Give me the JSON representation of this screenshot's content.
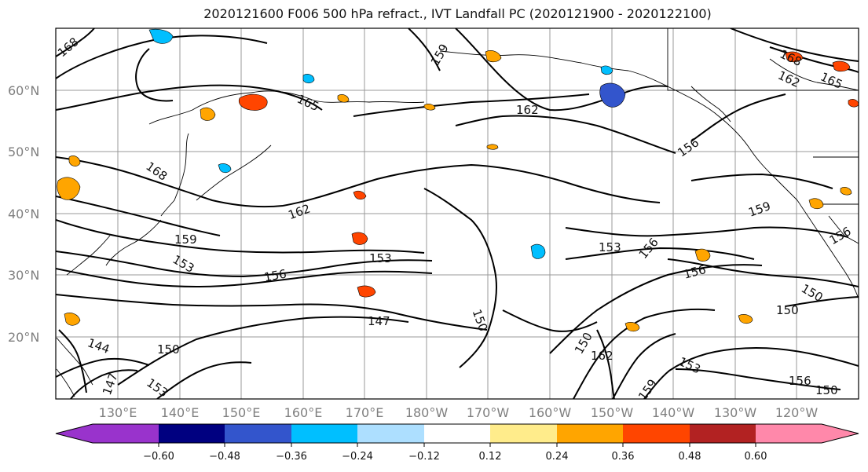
{
  "title": "2020121600 F006 500 hPa refract., IVT Landfall PC (2020121900 - 2020122100)",
  "lat_labels": [
    "60°N",
    "50°N",
    "40°N",
    "30°N",
    "20°N"
  ],
  "lon_labels": [
    "130°E",
    "140°E",
    "150°E",
    "160°E",
    "170°E",
    "180°W",
    "170°W",
    "160°W",
    "150°W",
    "140°W",
    "130°W",
    "120°W"
  ],
  "contour_labels": [
    "168",
    "159",
    "162",
    "165",
    "162",
    "165",
    "168",
    "156",
    "168",
    "162",
    "159",
    "159",
    "153",
    "153",
    "156",
    "153",
    "156",
    "156",
    "150",
    "147",
    "150",
    "150",
    "162",
    "153",
    "159",
    "156",
    "150",
    "150",
    "156",
    "150",
    "144",
    "147",
    "153"
  ],
  "colorbar": {
    "ticks": [
      "−0.60",
      "−0.48",
      "−0.36",
      "−0.24",
      "−0.12",
      "0.12",
      "0.24",
      "0.36",
      "0.48",
      "0.60"
    ],
    "colors": [
      "#9933cc",
      "#000080",
      "#3355cc",
      "#00bfff",
      "#addfff",
      "#ffffff",
      "#ffec8b",
      "#ffa500",
      "#ff4500",
      "#b22222",
      "#ff88aa"
    ]
  },
  "legend_icon": "colorbar-extend-arrows"
}
